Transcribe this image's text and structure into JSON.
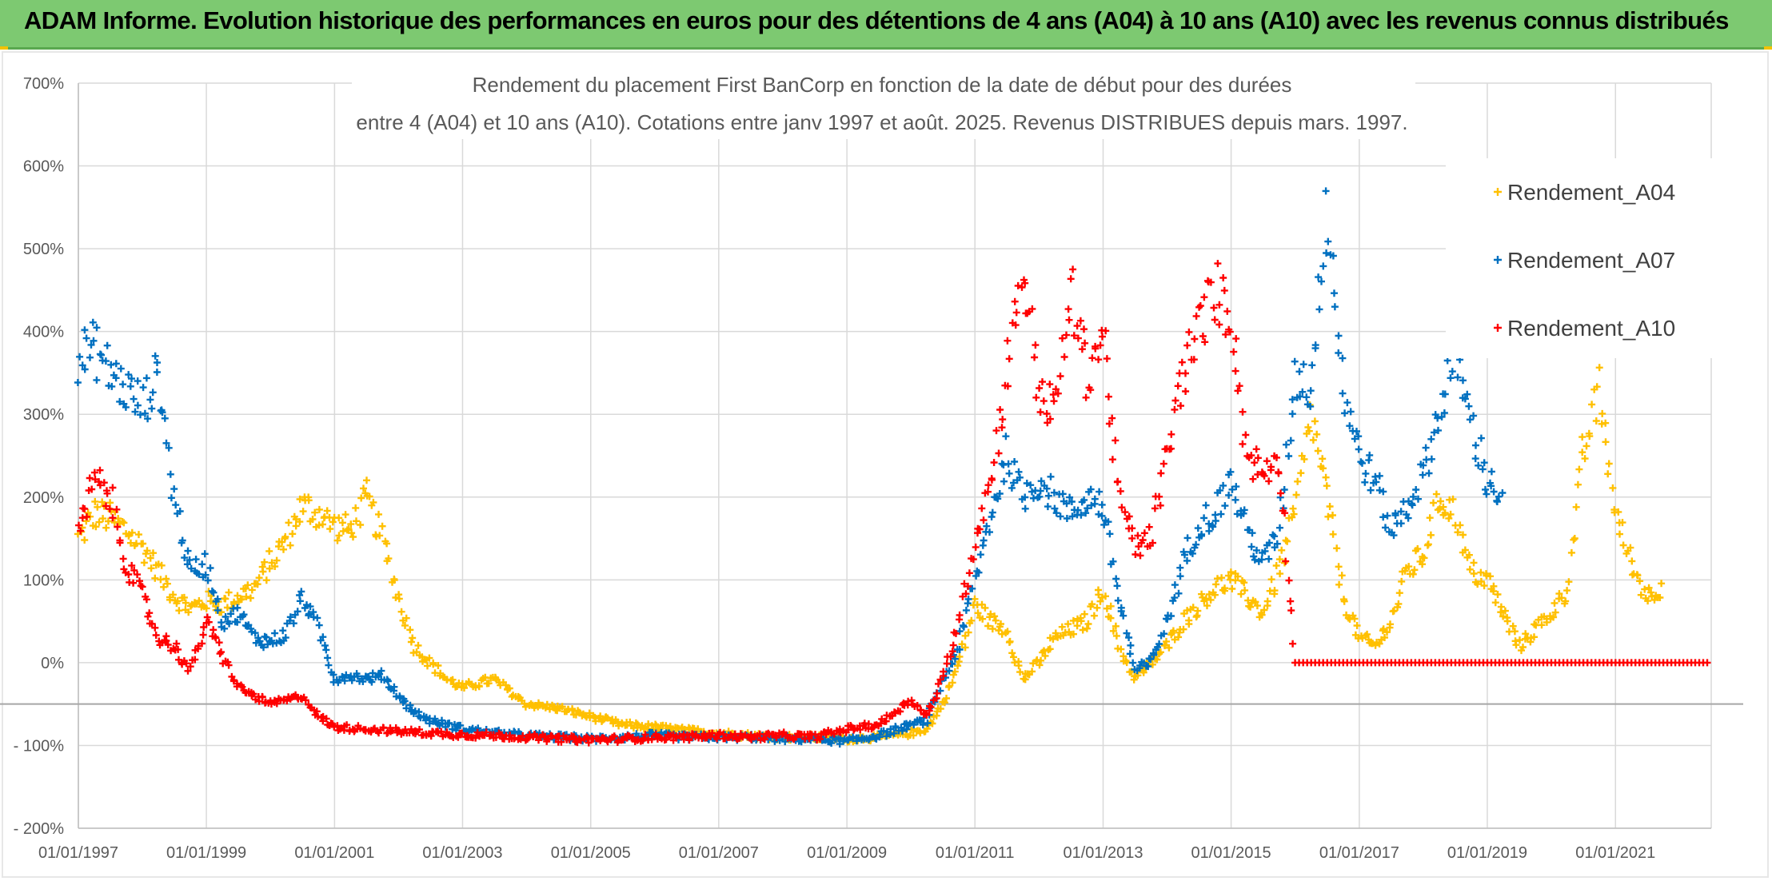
{
  "banner": {
    "title": "ADAM Informe. Evolution historique des performances en euros pour des détentions de 4 ans (A04) à 10 ans (A10) avec les revenus connus distribués"
  },
  "chart_data": {
    "type": "scatter",
    "title_line1": "Rendement du placement First BanCorp en fonction de la date de début pour des durées",
    "title_line2": "entre 4 (A04) et 10 ans (A10). Cotations entre janv 1997 et août. 2025. Revenus DISTRIBUES depuis mars. 1997.",
    "x_start": "01/01/1997",
    "x_end": "01/07/2022",
    "x_ticks": [
      "01/01/1997",
      "01/01/1999",
      "01/01/2001",
      "01/01/2003",
      "01/01/2005",
      "01/01/2007",
      "01/01/2009",
      "01/01/2011",
      "01/01/2013",
      "01/01/2015",
      "01/01/2017",
      "01/01/2019",
      "01/01/2021"
    ],
    "ylim": [
      -200,
      700
    ],
    "y_ticks": [
      "- 200%",
      "- 100%",
      "0%",
      "100%",
      "200%",
      "300%",
      "400%",
      "500%",
      "600%",
      "700%"
    ],
    "y_tick_values": [
      -200,
      -100,
      0,
      100,
      200,
      300,
      400,
      500,
      600,
      700
    ],
    "reference_line": -50,
    "grid": true,
    "legend_position": "top-right",
    "series": [
      {
        "name": "Rendement_A04",
        "color": "#ffc000",
        "marker": "+",
        "points": [
          [
            "01/01/1997",
            150
          ],
          [
            "01/04/1997",
            180
          ],
          [
            "01/07/1997",
            175
          ],
          [
            "01/10/1997",
            160
          ],
          [
            "01/01/1998",
            140
          ],
          [
            "01/04/1998",
            110
          ],
          [
            "01/07/1998",
            80
          ],
          [
            "01/10/1998",
            65
          ],
          [
            "01/01/1999",
            75
          ],
          [
            "01/04/1999",
            70
          ],
          [
            "01/07/1999",
            80
          ],
          [
            "01/10/1999",
            90
          ],
          [
            "01/01/2000",
            120
          ],
          [
            "01/04/2000",
            150
          ],
          [
            "01/07/2000",
            190
          ],
          [
            "01/10/2000",
            180
          ],
          [
            "01/01/2001",
            165
          ],
          [
            "01/04/2001",
            160
          ],
          [
            "01/07/2001",
            200
          ],
          [
            "01/10/2001",
            150
          ],
          [
            "01/01/2002",
            80
          ],
          [
            "01/04/2002",
            20
          ],
          [
            "01/07/2002",
            0
          ],
          [
            "01/10/2002",
            -20
          ],
          [
            "01/01/2003",
            -30
          ],
          [
            "01/07/2003",
            -20
          ],
          [
            "01/01/2004",
            -50
          ],
          [
            "01/07/2004",
            -55
          ],
          [
            "01/01/2005",
            -65
          ],
          [
            "01/07/2005",
            -75
          ],
          [
            "01/01/2006",
            -78
          ],
          [
            "01/07/2006",
            -82
          ],
          [
            "01/01/2007",
            -85
          ],
          [
            "01/07/2007",
            -88
          ],
          [
            "01/01/2008",
            -90
          ],
          [
            "01/07/2008",
            -90
          ],
          [
            "01/01/2009",
            -92
          ],
          [
            "01/07/2009",
            -90
          ],
          [
            "01/01/2010",
            -85
          ],
          [
            "01/04/2010",
            -80
          ],
          [
            "01/07/2010",
            -50
          ],
          [
            "01/10/2010",
            0
          ],
          [
            "01/01/2011",
            70
          ],
          [
            "01/04/2011",
            50
          ],
          [
            "01/07/2011",
            40
          ],
          [
            "01/10/2011",
            -20
          ],
          [
            "01/01/2012",
            0
          ],
          [
            "01/04/2012",
            30
          ],
          [
            "01/07/2012",
            40
          ],
          [
            "01/10/2012",
            50
          ],
          [
            "01/01/2013",
            90
          ],
          [
            "01/04/2013",
            20
          ],
          [
            "01/07/2013",
            -20
          ],
          [
            "01/10/2013",
            0
          ],
          [
            "01/01/2014",
            20
          ],
          [
            "01/04/2014",
            50
          ],
          [
            "01/07/2014",
            70
          ],
          [
            "01/10/2014",
            90
          ],
          [
            "01/01/2015",
            100
          ],
          [
            "01/04/2015",
            80
          ],
          [
            "01/07/2015",
            60
          ],
          [
            "01/10/2015",
            110
          ],
          [
            "01/01/2016",
            180
          ],
          [
            "01/04/2016",
            300
          ],
          [
            "01/07/2016",
            200
          ],
          [
            "01/10/2016",
            80
          ],
          [
            "01/01/2017",
            30
          ],
          [
            "01/04/2017",
            20
          ],
          [
            "01/07/2017",
            50
          ],
          [
            "01/10/2017",
            110
          ],
          [
            "01/01/2018",
            130
          ],
          [
            "01/04/2018",
            200
          ],
          [
            "01/07/2018",
            180
          ],
          [
            "01/10/2018",
            110
          ],
          [
            "01/01/2019",
            100
          ],
          [
            "01/04/2019",
            60
          ],
          [
            "01/07/2019",
            20
          ],
          [
            "01/10/2019",
            40
          ],
          [
            "01/01/2020",
            60
          ],
          [
            "01/04/2020",
            90
          ],
          [
            "01/07/2020",
            250
          ],
          [
            "01/10/2020",
            330
          ],
          [
            "01/01/2021",
            180
          ],
          [
            "01/04/2021",
            120
          ],
          [
            "01/07/2021",
            80
          ],
          [
            "01/10/2021",
            95
          ]
        ]
      },
      {
        "name": "Rendement_A07",
        "color": "#0070c0",
        "marker": "+",
        "points": [
          [
            "01/01/1997",
            370
          ],
          [
            "01/04/1997",
            380
          ],
          [
            "01/07/1997",
            350
          ],
          [
            "01/10/1997",
            330
          ],
          [
            "01/01/1998",
            310
          ],
          [
            "01/04/1998",
            350
          ],
          [
            "01/07/1998",
            200
          ],
          [
            "01/10/1998",
            110
          ],
          [
            "01/01/1999",
            120
          ],
          [
            "01/04/1999",
            50
          ],
          [
            "01/07/1999",
            60
          ],
          [
            "01/10/1999",
            30
          ],
          [
            "01/01/2000",
            25
          ],
          [
            "01/04/2000",
            35
          ],
          [
            "01/07/2000",
            80
          ],
          [
            "01/10/2000",
            40
          ],
          [
            "01/01/2001",
            -20
          ],
          [
            "01/04/2001",
            -15
          ],
          [
            "01/07/2001",
            -20
          ],
          [
            "01/10/2001",
            -15
          ],
          [
            "01/01/2002",
            -40
          ],
          [
            "01/04/2002",
            -60
          ],
          [
            "01/07/2002",
            -70
          ],
          [
            "01/10/2002",
            -75
          ],
          [
            "01/01/2003",
            -80
          ],
          [
            "01/07/2003",
            -85
          ],
          [
            "01/01/2004",
            -88
          ],
          [
            "01/07/2004",
            -90
          ],
          [
            "01/01/2005",
            -92
          ],
          [
            "01/07/2005",
            -90
          ],
          [
            "01/01/2006",
            -88
          ],
          [
            "01/07/2006",
            -90
          ],
          [
            "01/01/2007",
            -90
          ],
          [
            "01/07/2007",
            -90
          ],
          [
            "01/01/2008",
            -92
          ],
          [
            "01/07/2008",
            -92
          ],
          [
            "01/01/2009",
            -95
          ],
          [
            "01/07/2009",
            -88
          ],
          [
            "01/01/2010",
            -75
          ],
          [
            "01/04/2010",
            -70
          ],
          [
            "01/07/2010",
            -20
          ],
          [
            "01/10/2010",
            20
          ],
          [
            "01/01/2011",
            100
          ],
          [
            "01/04/2011",
            180
          ],
          [
            "01/07/2011",
            250
          ],
          [
            "01/10/2011",
            200
          ],
          [
            "01/01/2012",
            220
          ],
          [
            "01/04/2012",
            200
          ],
          [
            "01/07/2012",
            180
          ],
          [
            "01/10/2012",
            200
          ],
          [
            "01/01/2013",
            190
          ],
          [
            "01/04/2013",
            80
          ],
          [
            "01/07/2013",
            -10
          ],
          [
            "01/10/2013",
            0
          ],
          [
            "01/01/2014",
            50
          ],
          [
            "01/04/2014",
            120
          ],
          [
            "01/07/2014",
            170
          ],
          [
            "01/10/2014",
            180
          ],
          [
            "01/01/2015",
            220
          ],
          [
            "01/04/2015",
            160
          ],
          [
            "01/07/2015",
            120
          ],
          [
            "01/10/2015",
            160
          ],
          [
            "01/01/2016",
            350
          ],
          [
            "01/04/2016",
            330
          ],
          [
            "01/07/2016",
            560
          ],
          [
            "01/10/2016",
            330
          ],
          [
            "01/01/2017",
            250
          ],
          [
            "01/04/2017",
            220
          ],
          [
            "01/07/2017",
            160
          ],
          [
            "01/10/2017",
            190
          ],
          [
            "01/01/2018",
            230
          ],
          [
            "01/04/2018",
            300
          ],
          [
            "01/07/2018",
            380
          ],
          [
            "01/10/2018",
            290
          ],
          [
            "01/01/2019",
            220
          ],
          [
            "01/04/2019",
            200
          ]
        ]
      },
      {
        "name": "Rendement_A10",
        "color": "#ff0000",
        "marker": "+",
        "points": [
          [
            "01/01/1997",
            150
          ],
          [
            "01/04/1997",
            220
          ],
          [
            "01/07/1997",
            200
          ],
          [
            "01/10/1997",
            120
          ],
          [
            "01/01/1998",
            80
          ],
          [
            "01/04/1998",
            30
          ],
          [
            "01/07/1998",
            20
          ],
          [
            "01/10/1998",
            -10
          ],
          [
            "01/01/1999",
            50
          ],
          [
            "01/04/1999",
            10
          ],
          [
            "01/07/1999",
            -30
          ],
          [
            "01/10/1999",
            -40
          ],
          [
            "01/01/2000",
            -50
          ],
          [
            "01/04/2000",
            -45
          ],
          [
            "01/07/2000",
            -40
          ],
          [
            "01/10/2000",
            -65
          ],
          [
            "01/01/2001",
            -78
          ],
          [
            "01/07/2001",
            -80
          ],
          [
            "01/01/2002",
            -83
          ],
          [
            "01/07/2002",
            -85
          ],
          [
            "01/01/2003",
            -87
          ],
          [
            "01/07/2003",
            -88
          ],
          [
            "01/01/2004",
            -90
          ],
          [
            "01/07/2004",
            -92
          ],
          [
            "01/01/2005",
            -93
          ],
          [
            "01/07/2005",
            -92
          ],
          [
            "01/01/2006",
            -90
          ],
          [
            "01/07/2006",
            -90
          ],
          [
            "01/01/2007",
            -88
          ],
          [
            "01/07/2007",
            -90
          ],
          [
            "01/01/2008",
            -88
          ],
          [
            "01/07/2008",
            -90
          ],
          [
            "01/01/2009",
            -80
          ],
          [
            "01/07/2009",
            -75
          ],
          [
            "01/01/2010",
            -45
          ],
          [
            "01/04/2010",
            -65
          ],
          [
            "01/07/2010",
            -20
          ],
          [
            "01/10/2010",
            50
          ],
          [
            "01/01/2011",
            150
          ],
          [
            "01/04/2011",
            220
          ],
          [
            "01/07/2011",
            350
          ],
          [
            "01/10/2011",
            480
          ],
          [
            "01/01/2012",
            330
          ],
          [
            "01/04/2012",
            300
          ],
          [
            "01/07/2012",
            450
          ],
          [
            "01/10/2012",
            350
          ],
          [
            "01/01/2013",
            400
          ],
          [
            "01/04/2013",
            200
          ],
          [
            "01/07/2013",
            140
          ],
          [
            "01/10/2013",
            150
          ],
          [
            "01/01/2014",
            250
          ],
          [
            "01/04/2014",
            350
          ],
          [
            "01/07/2014",
            400
          ],
          [
            "01/10/2014",
            450
          ],
          [
            "01/01/2015",
            420
          ],
          [
            "01/04/2015",
            250
          ],
          [
            "01/07/2015",
            230
          ],
          [
            "01/10/2015",
            250
          ],
          [
            "01/01/2016",
            0
          ],
          [
            "01/01/2017",
            0
          ],
          [
            "01/01/2018",
            0
          ],
          [
            "01/01/2019",
            0
          ],
          [
            "01/01/2020",
            0
          ],
          [
            "01/01/2021",
            0
          ],
          [
            "01/07/2022",
            0
          ]
        ]
      }
    ]
  }
}
